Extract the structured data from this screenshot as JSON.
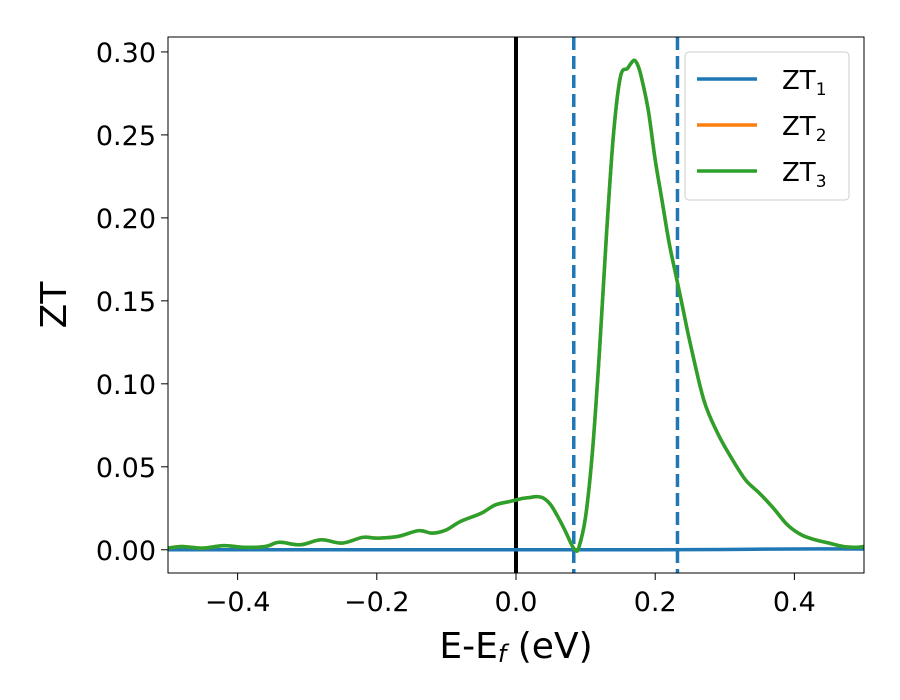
{
  "chart_data": {
    "type": "line",
    "xlabel": "E-E",
    "xlabel_sub": "f",
    "xlabel_unit": " (eV)",
    "ylabel": "ZT",
    "xlim": [
      -0.5,
      0.5
    ],
    "ylim": [
      -0.014,
      0.309
    ],
    "xticks": [
      -0.4,
      -0.2,
      0.0,
      0.2,
      0.4
    ],
    "xtick_labels": [
      "−0.4",
      "−0.2",
      "0.0",
      "0.2",
      "0.4"
    ],
    "yticks": [
      0.0,
      0.05,
      0.1,
      0.15,
      0.2,
      0.25,
      0.3
    ],
    "ytick_labels": [
      "0.00",
      "0.05",
      "0.10",
      "0.15",
      "0.20",
      "0.25",
      "0.30"
    ],
    "grid": false,
    "legend_position": "top-right",
    "vertical_lines": [
      {
        "x": 0.0,
        "style": "solid",
        "color": "#000000"
      },
      {
        "x": 0.083,
        "style": "dashed",
        "color": "#1f77b4"
      },
      {
        "x": 0.232,
        "style": "dashed",
        "color": "#1f77b4"
      }
    ],
    "series": [
      {
        "name": "ZT",
        "name_sub": "1",
        "color": "#1f77b4",
        "x": [
          -0.5,
          -0.3,
          -0.1,
          0.0,
          0.1,
          0.2,
          0.3,
          0.4,
          0.5
        ],
        "y": [
          0.0,
          0.0,
          0.0,
          0.0,
          0.0,
          0.0,
          0.0002,
          0.0005,
          0.0005
        ]
      },
      {
        "name": "ZT",
        "name_sub": "2",
        "color": "#ff7f0e",
        "x": [
          -0.5,
          -0.48,
          -0.45,
          -0.42,
          -0.39,
          -0.36,
          -0.34,
          -0.31,
          -0.28,
          -0.25,
          -0.22,
          -0.2,
          -0.17,
          -0.14,
          -0.12,
          -0.1,
          -0.08,
          -0.05,
          -0.03,
          -0.01,
          0.0,
          0.01,
          0.02,
          0.03,
          0.04,
          0.05,
          0.06,
          0.07,
          0.08,
          0.085,
          0.09,
          0.1,
          0.11,
          0.12,
          0.13,
          0.14,
          0.15,
          0.16,
          0.165,
          0.17,
          0.175,
          0.18,
          0.19,
          0.2,
          0.21,
          0.22,
          0.23,
          0.24,
          0.25,
          0.27,
          0.29,
          0.31,
          0.33,
          0.35,
          0.37,
          0.39,
          0.41,
          0.43,
          0.45,
          0.47,
          0.49,
          0.5
        ],
        "y": [
          0.001,
          0.002,
          0.001,
          0.0025,
          0.0015,
          0.002,
          0.0045,
          0.003,
          0.006,
          0.004,
          0.0075,
          0.007,
          0.008,
          0.0115,
          0.01,
          0.012,
          0.017,
          0.022,
          0.027,
          0.029,
          0.03,
          0.031,
          0.0315,
          0.032,
          0.031,
          0.027,
          0.02,
          0.012,
          0.003,
          0.0,
          0.001,
          0.02,
          0.06,
          0.12,
          0.19,
          0.25,
          0.285,
          0.29,
          0.293,
          0.295,
          0.292,
          0.285,
          0.265,
          0.235,
          0.21,
          0.185,
          0.165,
          0.145,
          0.125,
          0.09,
          0.07,
          0.055,
          0.042,
          0.034,
          0.025,
          0.015,
          0.009,
          0.006,
          0.004,
          0.002,
          0.0015,
          0.002
        ]
      },
      {
        "name": "ZT",
        "name_sub": "3",
        "color": "#2ca02c",
        "x": [
          -0.5,
          -0.48,
          -0.45,
          -0.42,
          -0.39,
          -0.36,
          -0.34,
          -0.31,
          -0.28,
          -0.25,
          -0.22,
          -0.2,
          -0.17,
          -0.14,
          -0.12,
          -0.1,
          -0.08,
          -0.05,
          -0.03,
          -0.01,
          0.0,
          0.01,
          0.02,
          0.03,
          0.04,
          0.05,
          0.06,
          0.07,
          0.08,
          0.085,
          0.09,
          0.1,
          0.11,
          0.12,
          0.13,
          0.14,
          0.15,
          0.16,
          0.165,
          0.17,
          0.175,
          0.18,
          0.19,
          0.2,
          0.21,
          0.22,
          0.23,
          0.24,
          0.25,
          0.27,
          0.29,
          0.31,
          0.33,
          0.35,
          0.37,
          0.39,
          0.41,
          0.43,
          0.45,
          0.47,
          0.49,
          0.5
        ],
        "y": [
          0.001,
          0.002,
          0.001,
          0.0025,
          0.0015,
          0.002,
          0.0045,
          0.003,
          0.006,
          0.004,
          0.0075,
          0.007,
          0.008,
          0.0115,
          0.01,
          0.012,
          0.017,
          0.022,
          0.027,
          0.029,
          0.03,
          0.031,
          0.0315,
          0.032,
          0.031,
          0.027,
          0.02,
          0.012,
          0.003,
          0.0,
          0.001,
          0.02,
          0.06,
          0.12,
          0.19,
          0.25,
          0.285,
          0.29,
          0.293,
          0.295,
          0.292,
          0.285,
          0.265,
          0.235,
          0.21,
          0.185,
          0.165,
          0.145,
          0.125,
          0.09,
          0.07,
          0.055,
          0.042,
          0.034,
          0.025,
          0.015,
          0.009,
          0.006,
          0.004,
          0.002,
          0.0015,
          0.002
        ]
      }
    ]
  }
}
